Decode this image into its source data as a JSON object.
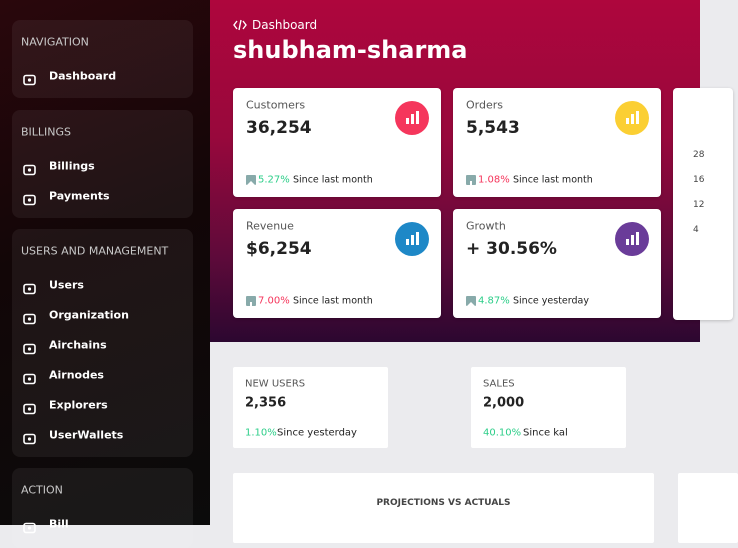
{
  "sidebar": {
    "sections": [
      {
        "title": "NAVIGATION",
        "items": [
          "Dashboard"
        ]
      },
      {
        "title": "BILLINGS",
        "items": [
          "Billings",
          "Payments"
        ]
      },
      {
        "title": "USERS AND MANAGEMENT",
        "items": [
          "Users",
          "Organization",
          "Airchains",
          "Airnodes",
          "Explorers",
          "UserWallets"
        ]
      },
      {
        "title": "ACTION",
        "items": [
          "Bill"
        ]
      }
    ]
  },
  "header": {
    "breadcrumb": "Dashboard",
    "title": "shubham-sharma"
  },
  "stat_cards": [
    {
      "label": "Customers",
      "value": "36,254",
      "change": "5.27%",
      "trend": "up",
      "note": "Since last month",
      "icon_color": "#f5365c"
    },
    {
      "label": "Orders",
      "value": "5,543",
      "change": "1.08%",
      "trend": "down",
      "note": "Since last month",
      "icon_color": "#fbcf33"
    },
    {
      "label": "Revenue",
      "value": "$6,254",
      "change": "7.00%",
      "trend": "down",
      "note": "Since last month",
      "icon_color": "#1e88c7"
    },
    {
      "label": "Growth",
      "value": "+ 30.56%",
      "change": "4.87%",
      "trend": "up",
      "note": "Since yesterday",
      "icon_color": "#6a3c99"
    }
  ],
  "partial_card": {
    "labels": [
      "28",
      "16",
      "12",
      "4"
    ]
  },
  "summary_cards": [
    {
      "label": "NEW USERS",
      "value": "2,356",
      "change": "1.10%",
      "note": "Since yesterday"
    },
    {
      "label": "SALES",
      "value": "2,000",
      "change": "40.10%",
      "note": "Since kal"
    }
  ],
  "chart_card": {
    "title": "PROJECTIONS VS ACTUALS"
  }
}
